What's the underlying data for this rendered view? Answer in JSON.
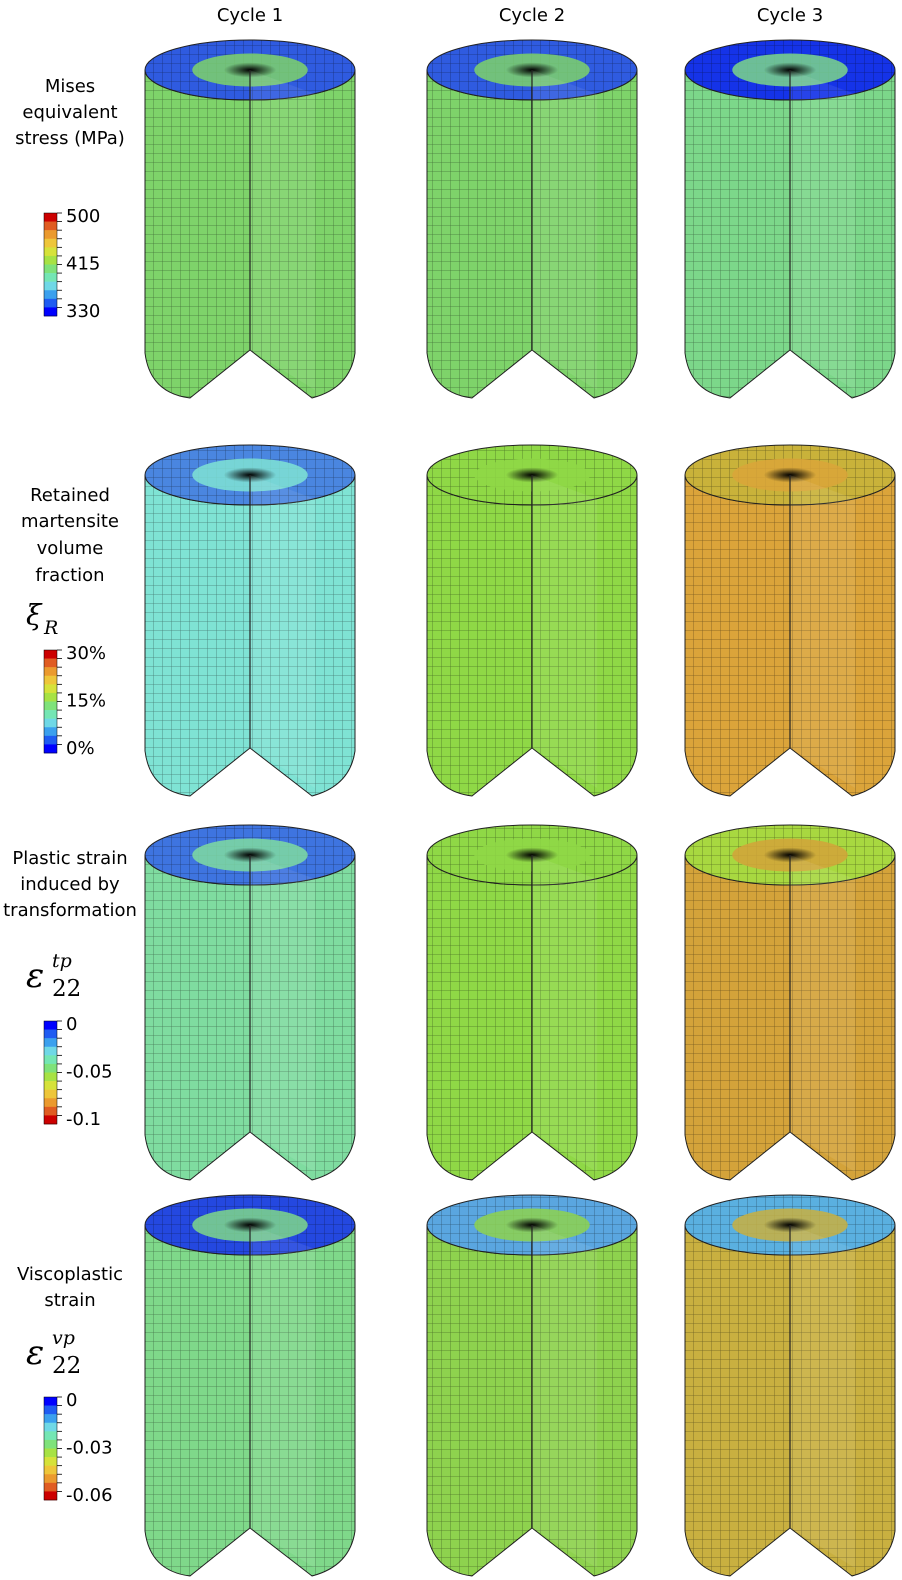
{
  "column_headers": [
    "Cycle 1",
    "Cycle 2",
    "Cycle 3"
  ],
  "rows": [
    {
      "label_lines": [
        "Mises",
        "equivalent",
        "stress (MPa)"
      ],
      "legend_labels": [
        "500",
        "415",
        "330"
      ]
    },
    {
      "label_lines": [
        "Retained",
        "martensite",
        "volume",
        "fraction"
      ],
      "symbol": {
        "base": "ξ",
        "sub": "R"
      },
      "legend_labels": [
        "30%",
        "15%",
        "0%"
      ]
    },
    {
      "label_lines": [
        "Plastic strain",
        "induced by",
        "transformation"
      ],
      "symbol": {
        "base": "ε",
        "sup": "tp",
        "sub": "22"
      },
      "legend_labels": [
        "0",
        "-0.05",
        "-0.1"
      ]
    },
    {
      "label_lines": [
        "Viscoplastic",
        "strain"
      ],
      "symbol": {
        "base": "ε",
        "sup": "vp",
        "sub": "22"
      },
      "legend_labels": [
        "0",
        "-0.03",
        "-0.06"
      ]
    }
  ]
}
